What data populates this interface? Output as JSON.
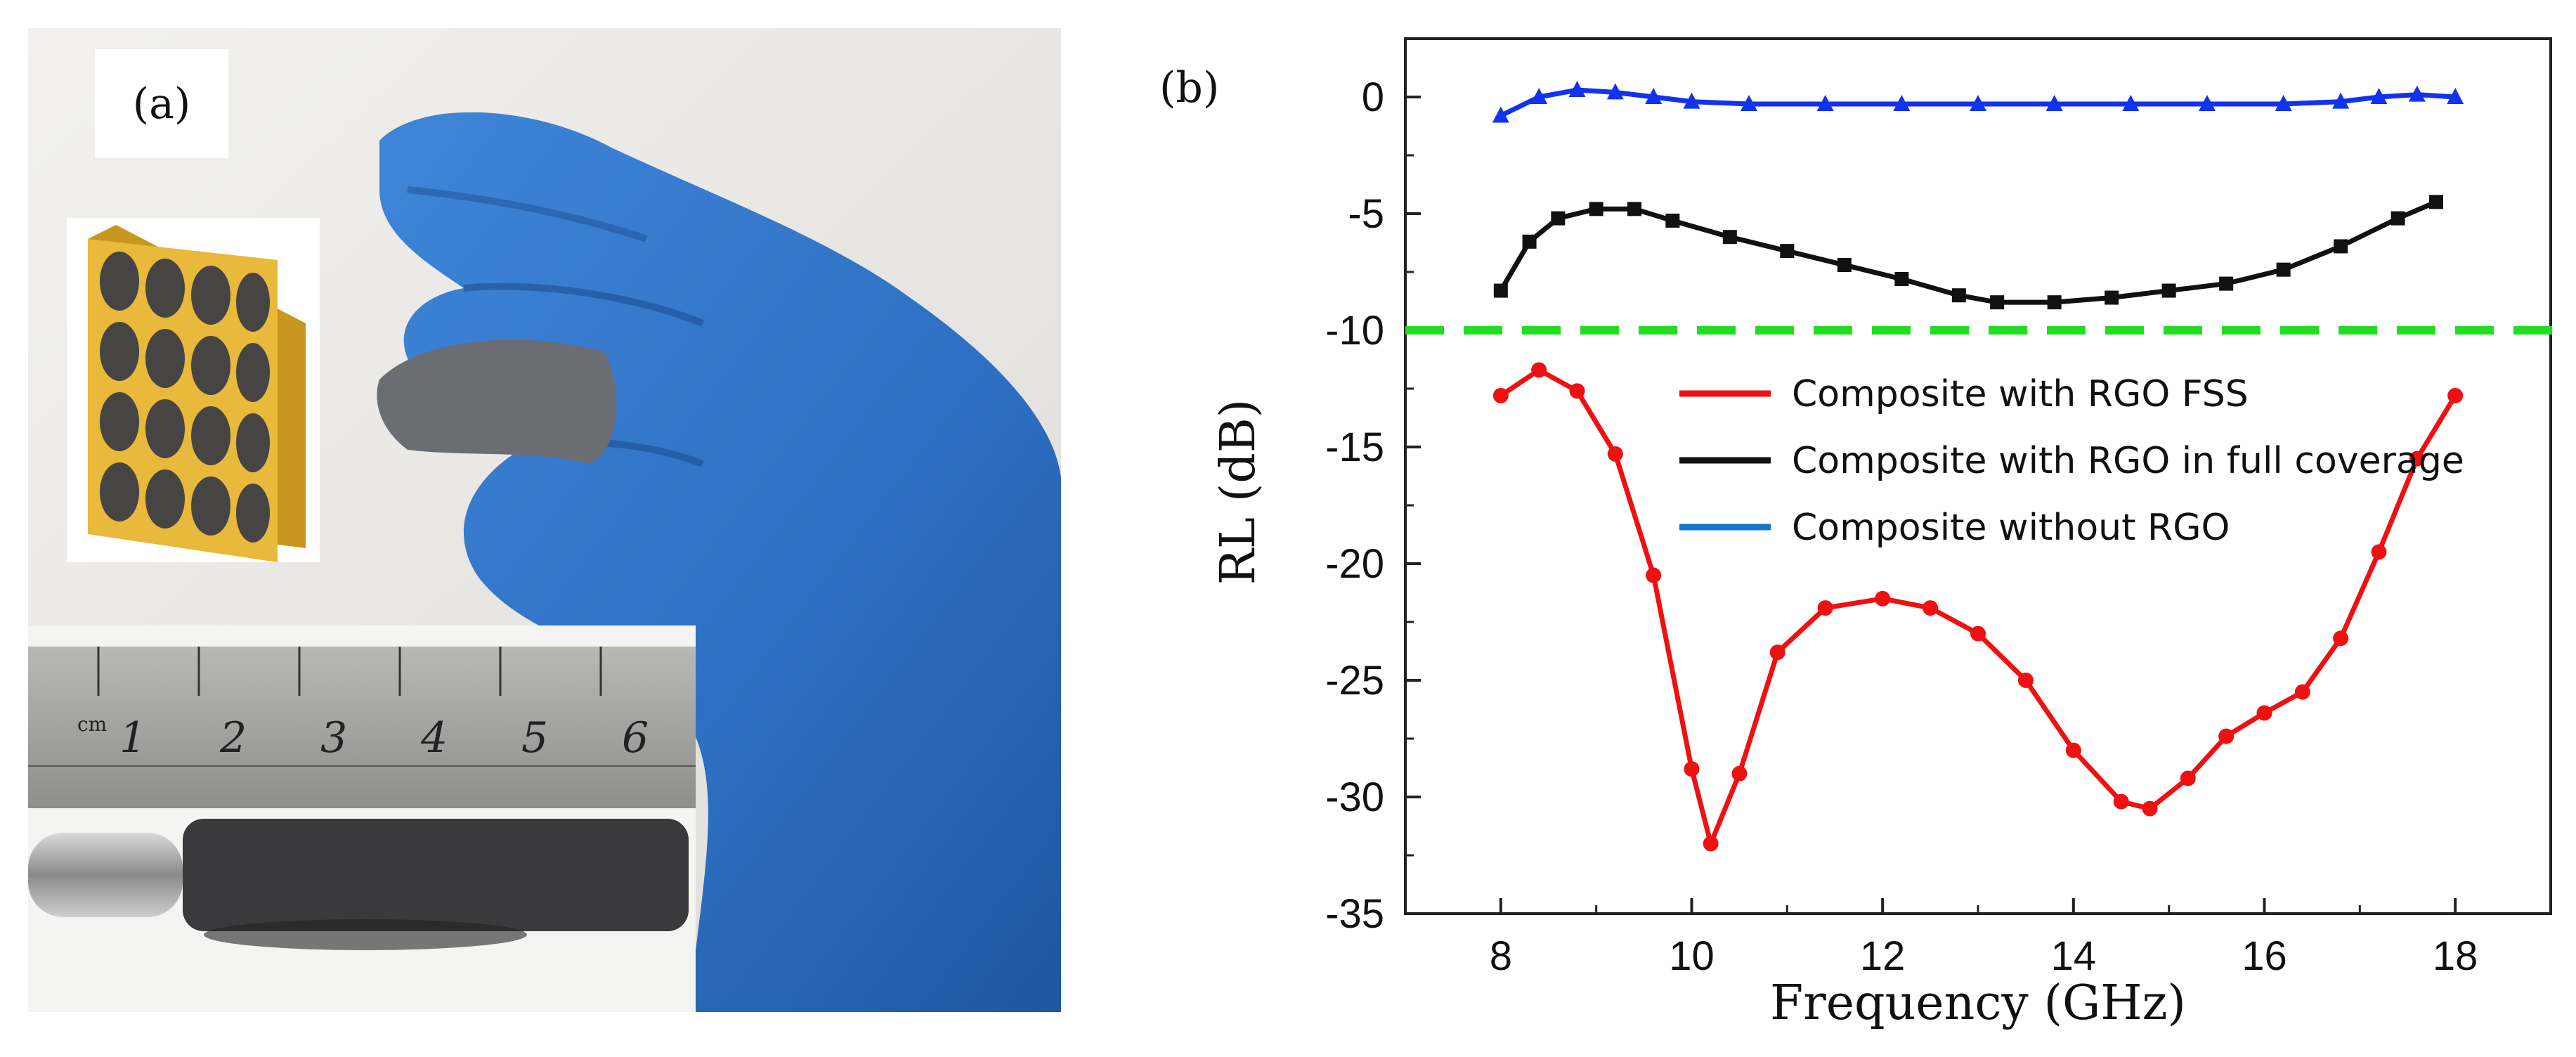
{
  "panel_a": {
    "label": "(a)",
    "ruler_labels": [
      "cm",
      "1",
      "2",
      "3",
      "4",
      "5",
      "6"
    ],
    "colors": {
      "glove": "#2f73c7",
      "sheet": "#6a6d72",
      "inset_gold": "#e8b93a",
      "inset_dot": "#3e3f45",
      "background": "#eceae6"
    }
  },
  "panel_b": {
    "label": "(b)"
  },
  "chart_data": {
    "type": "line",
    "xlabel": "Frequency (GHz)",
    "ylabel": "RL (dB)",
    "xlim": [
      7.0,
      19.0
    ],
    "ylim": [
      -35,
      2.5
    ],
    "xticks": [
      8,
      10,
      12,
      14,
      16,
      18
    ],
    "yticks": [
      0,
      -5,
      -10,
      -15,
      -20,
      -25,
      -30,
      -35
    ],
    "legend_position": "center-right",
    "threshold": {
      "y": -10,
      "color": "#22dd22",
      "style": "dashed"
    },
    "series": [
      {
        "name": "Composite with RGO FSS",
        "color": "#ee1111",
        "marker": "circle",
        "x": [
          8.0,
          8.4,
          8.8,
          9.2,
          9.6,
          10.0,
          10.2,
          10.5,
          10.9,
          11.4,
          12.0,
          12.5,
          13.0,
          13.5,
          14.0,
          14.5,
          14.8,
          15.2,
          15.6,
          16.0,
          16.4,
          16.8,
          17.2,
          17.6,
          18.0
        ],
        "y": [
          -12.8,
          -11.7,
          -12.6,
          -15.3,
          -20.5,
          -28.8,
          -32.0,
          -29.0,
          -23.8,
          -21.9,
          -21.5,
          -21.9,
          -23.0,
          -25.0,
          -28.0,
          -30.2,
          -30.5,
          -29.2,
          -27.4,
          -26.4,
          -25.5,
          -23.2,
          -19.5,
          -15.5,
          -12.8
        ]
      },
      {
        "name": "Composite with RGO in full coverage",
        "color": "#111111",
        "marker": "square",
        "x": [
          8.0,
          8.3,
          8.6,
          9.0,
          9.4,
          9.8,
          10.4,
          11.0,
          11.6,
          12.2,
          12.8,
          13.2,
          13.8,
          14.4,
          15.0,
          15.6,
          16.2,
          16.8,
          17.4,
          17.8
        ],
        "y": [
          -8.3,
          -6.2,
          -5.2,
          -4.8,
          -4.8,
          -5.3,
          -6.0,
          -6.6,
          -7.2,
          -7.8,
          -8.5,
          -8.8,
          -8.8,
          -8.6,
          -8.3,
          -8.0,
          -7.4,
          -6.4,
          -5.2,
          -4.5
        ]
      },
      {
        "name": "Composite without RGO",
        "color": "#1133ee",
        "marker": "triangle",
        "x": [
          8.0,
          8.4,
          8.8,
          9.2,
          9.6,
          10.0,
          10.6,
          11.4,
          12.2,
          13.0,
          13.8,
          14.6,
          15.4,
          16.2,
          16.8,
          17.2,
          17.6,
          18.0
        ],
        "y": [
          -0.8,
          0.0,
          0.3,
          0.2,
          0.0,
          -0.2,
          -0.3,
          -0.3,
          -0.3,
          -0.3,
          -0.3,
          -0.3,
          -0.3,
          -0.3,
          -0.2,
          0.0,
          0.1,
          0.0
        ]
      }
    ]
  }
}
